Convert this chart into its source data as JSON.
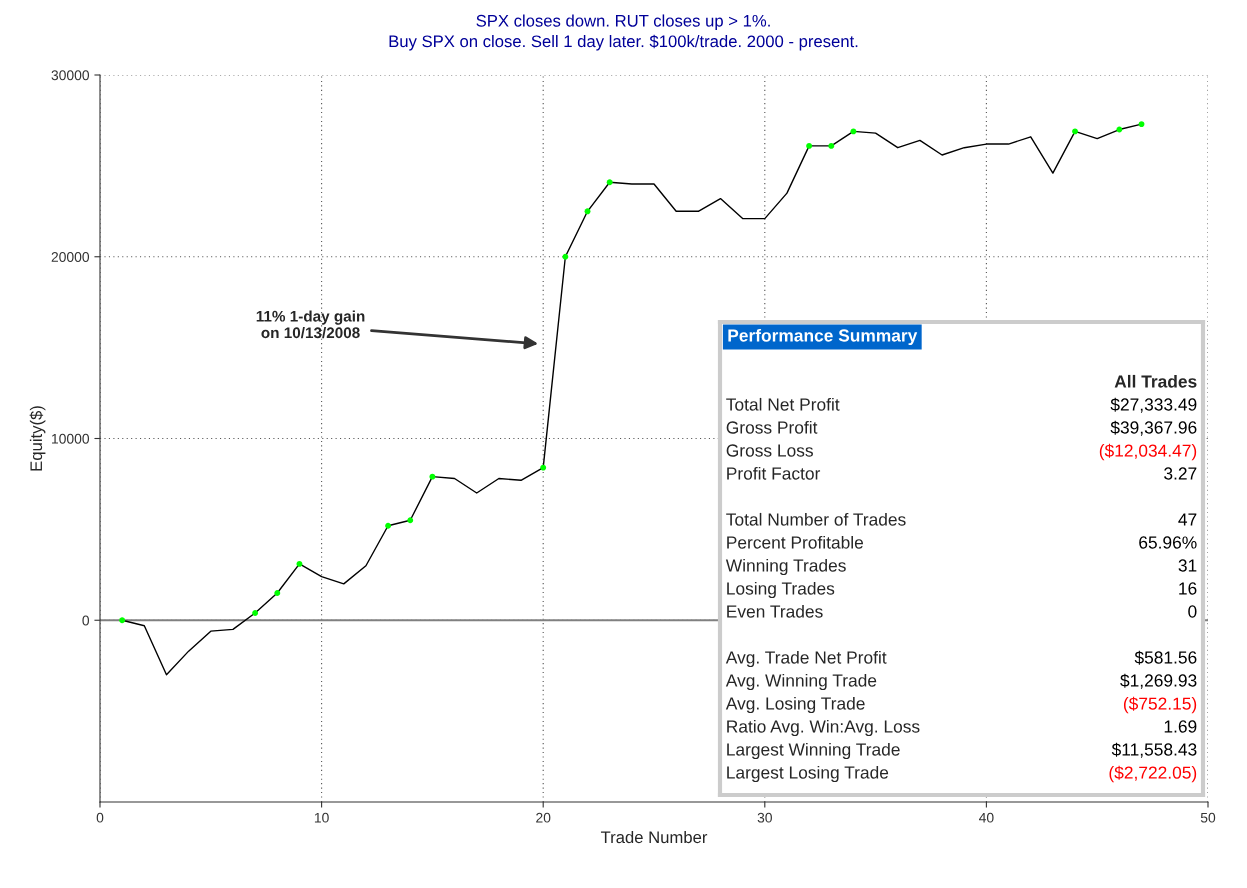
{
  "chart_data": [
    {
      "type": "line",
      "title": "SPX closes down. RUT closes up > 1%.",
      "subtitle": "Buy SPX on close. Sell 1 day later. $100k/trade. 2000 - present.",
      "xlabel": "Trade Number",
      "ylabel": "Equity($)",
      "x": [
        1,
        2,
        3,
        4,
        5,
        6,
        7,
        8,
        9,
        10,
        11,
        12,
        13,
        14,
        15,
        16,
        17,
        18,
        19,
        20,
        21,
        22,
        23,
        24,
        25,
        26,
        27,
        28,
        29,
        30,
        31,
        32,
        33,
        34,
        35,
        36,
        37,
        38,
        39,
        40,
        41,
        42,
        43,
        44,
        45,
        46,
        47
      ],
      "series": [
        {
          "type": "line",
          "color": "#000000",
          "marker": "none",
          "values": [
            0,
            -300,
            -3000,
            -1700,
            -600,
            -500,
            400,
            1500,
            3100,
            2400,
            2000,
            3000,
            5200,
            5500,
            7900,
            7800,
            7000,
            7800,
            7700,
            8400,
            20000,
            22500,
            24100,
            24000,
            24000,
            22500,
            22500,
            23200,
            22100,
            22100,
            23500,
            26100,
            26100,
            26900,
            26800,
            26000,
            26400,
            25600,
            26000,
            26200,
            26200,
            26600,
            24600,
            26900,
            26500,
            27000,
            27300
          ]
        },
        {
          "type": "scatter",
          "color": "#00ff00",
          "marker": "circle",
          "x": [
            1,
            7,
            8,
            9,
            13,
            14,
            15,
            20,
            21,
            22,
            23,
            32,
            33,
            34,
            44,
            46,
            47
          ],
          "values": [
            0,
            400,
            1500,
            3100,
            5200,
            5500,
            7900,
            8400,
            20000,
            22500,
            24100,
            26100,
            26100,
            26900,
            26900,
            27000,
            27300
          ]
        }
      ],
      "xlim": [
        0,
        50
      ],
      "xticks": [
        0,
        10,
        20,
        30,
        40,
        50
      ],
      "ylim": [
        -10000,
        30000
      ],
      "yticks": [
        0,
        10000,
        20000,
        30000
      ],
      "grid": true,
      "ref_lines": [
        {
          "axis": "y",
          "value": 0,
          "color": "#808080",
          "line_style": "solid"
        }
      ],
      "annotations": [
        "11% 1-day gain\non 10/13/2008"
      ]
    },
    {
      "type": "other",
      "title": "Performance Summary",
      "subtitle": "All Trades",
      "categories": [
        "Total Net Profit",
        "Gross Profit",
        "Gross Loss",
        "Profit Factor",
        null,
        "Total Number of Trades",
        "Percent Profitable",
        "Winning Trades",
        "Losing Trades",
        "Even Trades",
        null,
        "Avg. Trade Net Profit",
        "Avg. Winning Trade",
        "Avg. Losing Trade",
        "Ratio Avg. Win:Avg. Loss",
        "Largest Winning Trade",
        "Largest Losing Trade"
      ],
      "value_labels": [
        "$27,333.49",
        "$39,367.96",
        "($12,034.47)",
        "3.27",
        null,
        "47",
        "65.96%",
        "31",
        "16",
        "0",
        null,
        "$581.56",
        "$1,269.93",
        "($752.15)",
        "1.69",
        "$11,558.43",
        "($2,722.05)"
      ],
      "colors": [
        "#000000",
        "#000000",
        "#ff0000",
        "#000000",
        null,
        "#000000",
        "#000000",
        "#000000",
        "#000000",
        "#000000",
        null,
        "#000000",
        "#000000",
        "#ff0000",
        "#000000",
        "#000000",
        "#ff0000"
      ]
    }
  ]
}
